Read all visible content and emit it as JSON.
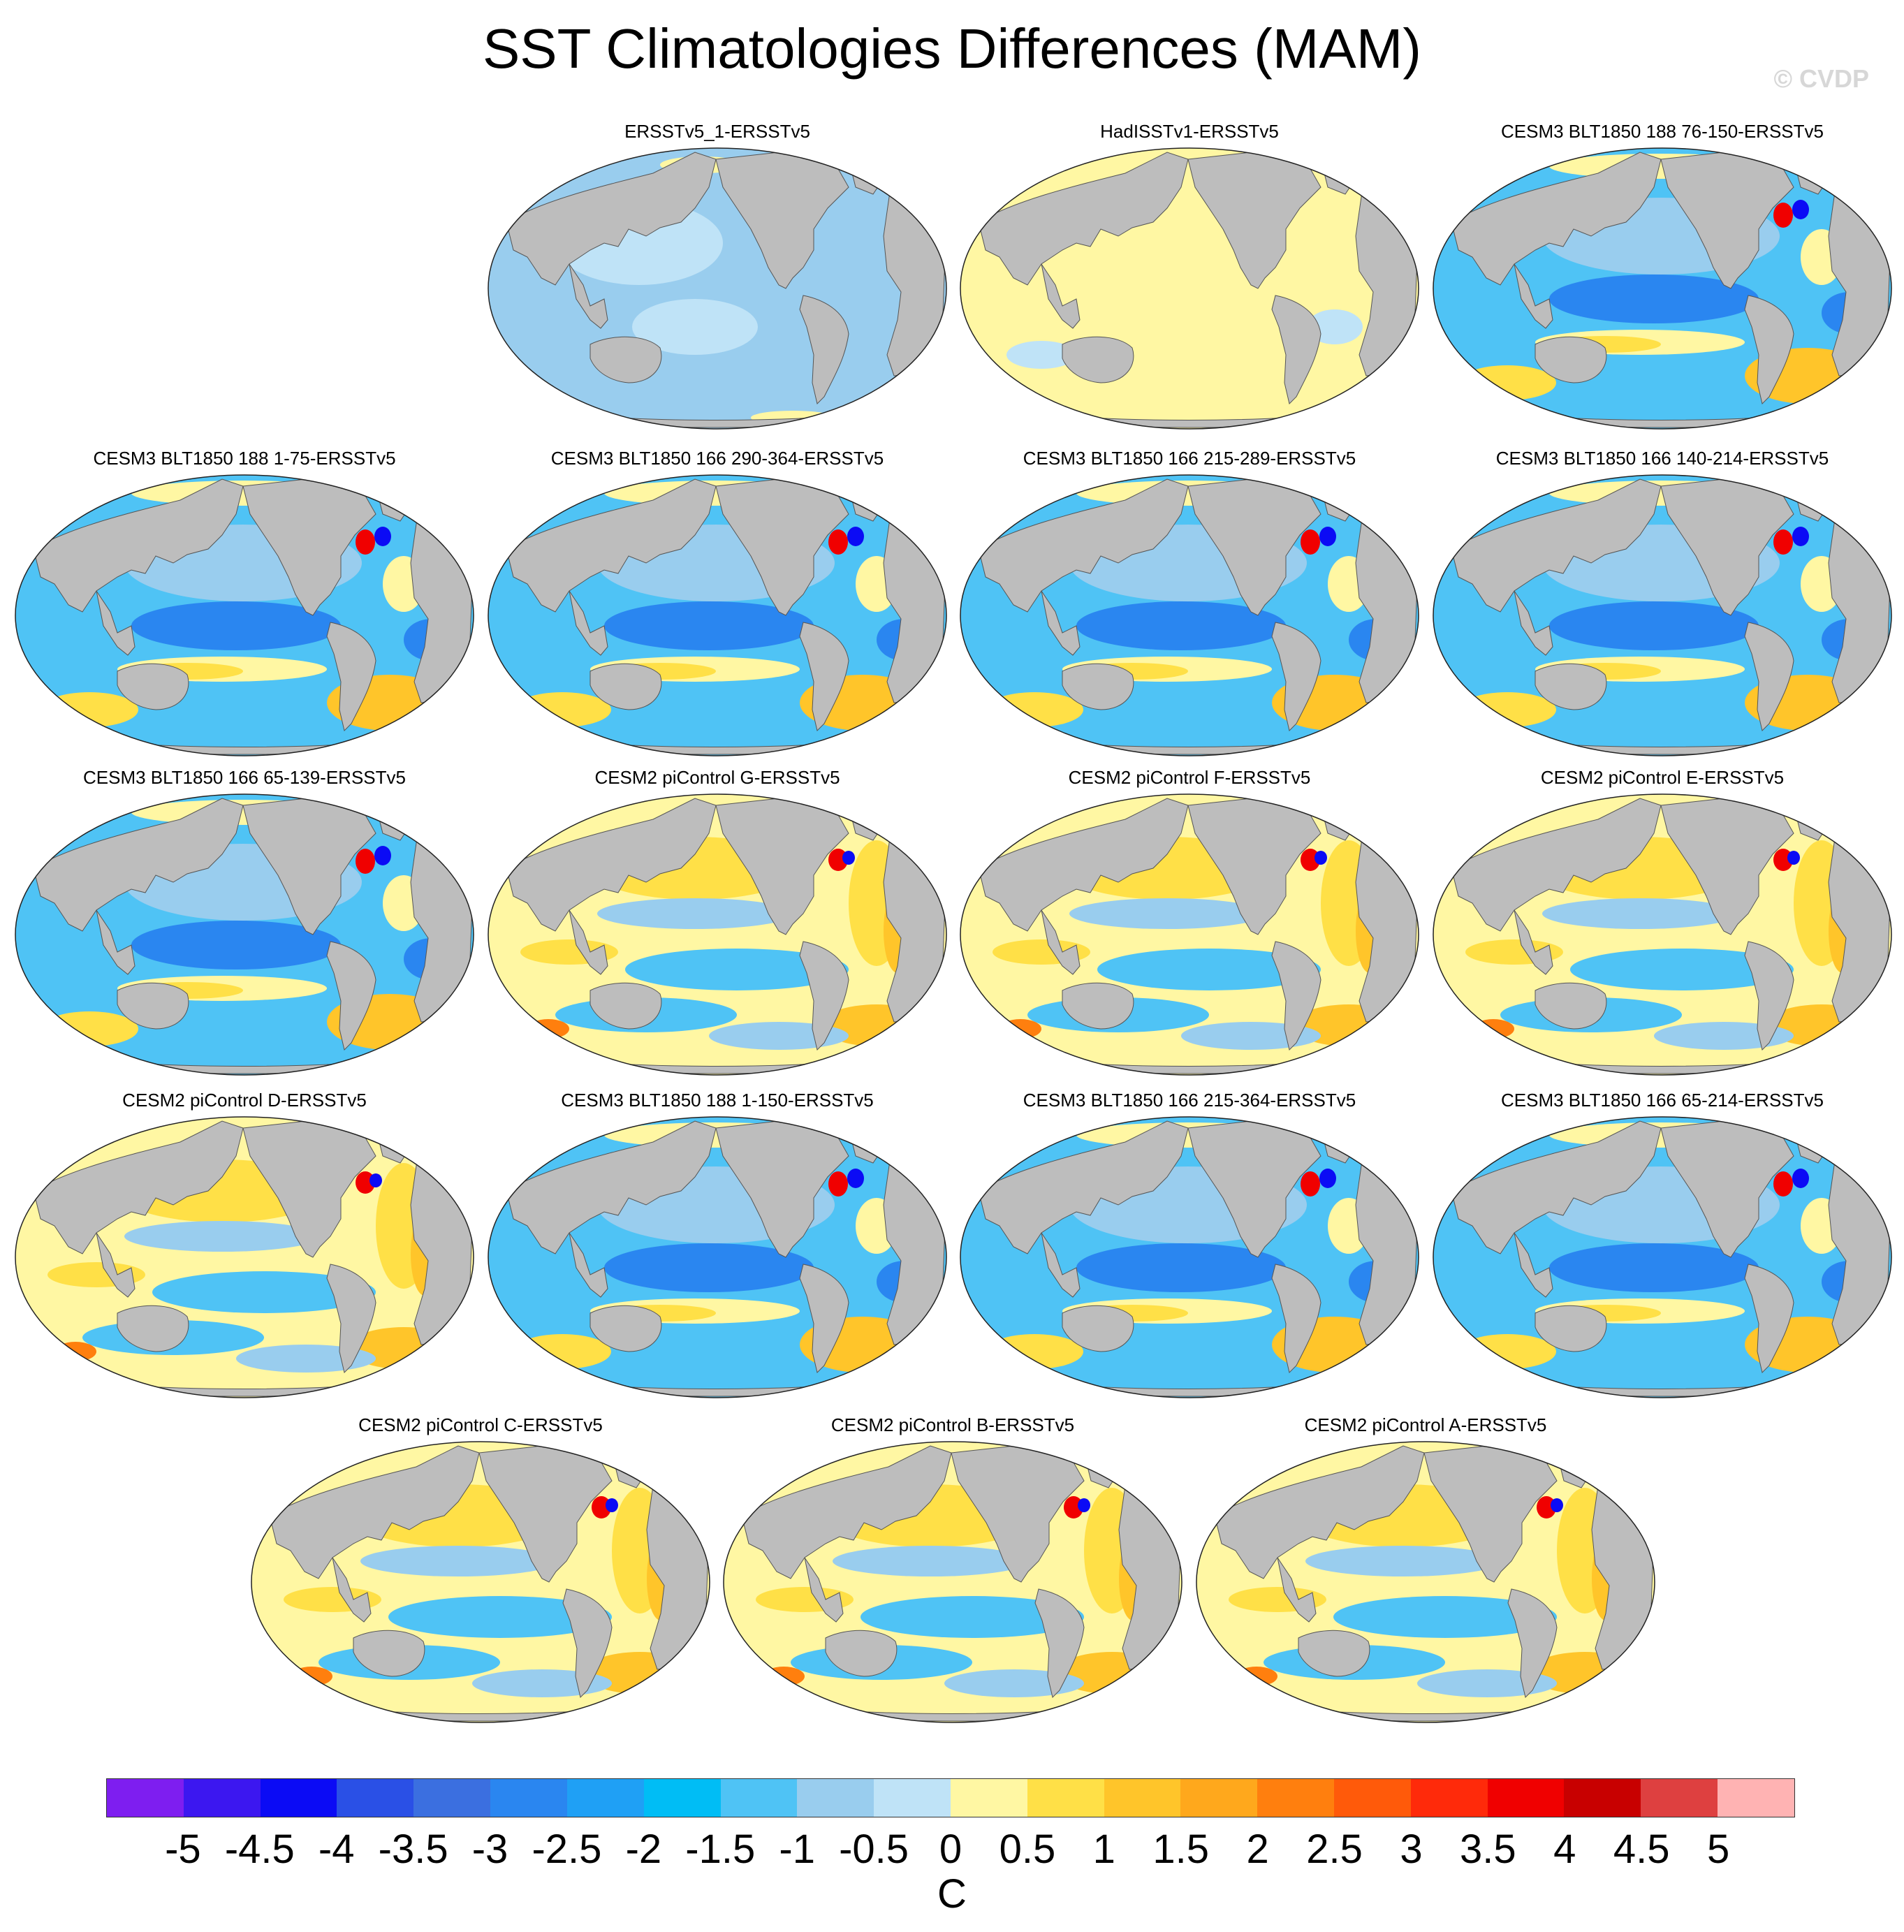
{
  "title": "SST Climatologies Differences (MAM)",
  "watermark": "© CVDP",
  "panels": [
    {
      "label": "ERSSTv5_1-ERSSTv5",
      "style": "uniform-cool"
    },
    {
      "label": "HadISSTv1-ERSSTv5",
      "style": "uniform-warm"
    },
    {
      "label": "CESM3 BLT1850 188 76-150-ERSSTv5",
      "style": "cesm3"
    },
    {
      "label": "CESM3 BLT1850 188 1-75-ERSSTv5",
      "style": "cesm3"
    },
    {
      "label": "CESM3 BLT1850 166 290-364-ERSSTv5",
      "style": "cesm3"
    },
    {
      "label": "CESM3 BLT1850 166 215-289-ERSSTv5",
      "style": "cesm3"
    },
    {
      "label": "CESM3 BLT1850 166 140-214-ERSSTv5",
      "style": "cesm3"
    },
    {
      "label": "CESM3 BLT1850 166 65-139-ERSSTv5",
      "style": "cesm3"
    },
    {
      "label": "CESM2 piControl G-ERSSTv5",
      "style": "cesm2"
    },
    {
      "label": "CESM2 piControl F-ERSSTv5",
      "style": "cesm2"
    },
    {
      "label": "CESM2 piControl E-ERSSTv5",
      "style": "cesm2"
    },
    {
      "label": "CESM2 piControl D-ERSSTv5",
      "style": "cesm2"
    },
    {
      "label": "CESM3 BLT1850 188 1-150-ERSSTv5",
      "style": "cesm3"
    },
    {
      "label": "CESM3 BLT1850 166 215-364-ERSSTv5",
      "style": "cesm3"
    },
    {
      "label": "CESM3 BLT1850 166 65-214-ERSSTv5",
      "style": "cesm3"
    },
    {
      "label": "CESM2 piControl C-ERSSTv5",
      "style": "cesm2"
    },
    {
      "label": "CESM2 piControl B-ERSSTv5",
      "style": "cesm2"
    },
    {
      "label": "CESM2 piControl A-ERSSTv5",
      "style": "cesm2"
    }
  ],
  "colorbar": {
    "colors": [
      "#7e1ef0",
      "#3c17f0",
      "#0b0bf5",
      "#2a50e6",
      "#3b6fe0",
      "#2a86f0",
      "#1fa0f5",
      "#00bdf5",
      "#4fc3f5",
      "#99cdee",
      "#bfe3f7",
      "#fff7a3",
      "#ffe047",
      "#ffc52a",
      "#ffa81c",
      "#ff7f0e",
      "#ff5a0a",
      "#ff2a0a",
      "#f00000",
      "#c80000",
      "#de4040",
      "#ffb3b3"
    ],
    "tick_labels": [
      "-5",
      "-4.5",
      "-4",
      "-3.5",
      "-3",
      "-2.5",
      "-2",
      "-1.5",
      "-1",
      "-0.5",
      "0",
      "0.5",
      "1",
      "1.5",
      "2",
      "2.5",
      "3",
      "3.5",
      "4",
      "4.5",
      "5"
    ],
    "units": "C"
  },
  "palette": {
    "land": "#bdbdbd",
    "coast": "#555555",
    "cool_light": "#bfe3f7",
    "cool": "#99cdee",
    "cool_mid": "#4fc3f5",
    "cool_deep": "#2a86f0",
    "cool_strong": "#0b0bf5",
    "warm_light": "#fff7a3",
    "warm": "#ffe047",
    "warm_mid": "#ffc52a",
    "warm_strong": "#ff7f0e",
    "hot": "#f00000"
  }
}
